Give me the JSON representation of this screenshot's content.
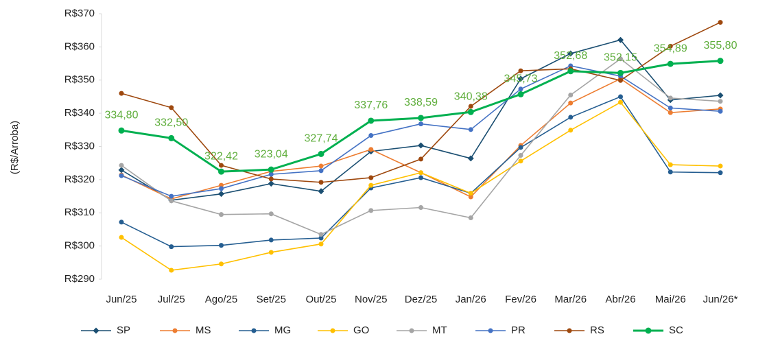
{
  "chart_data": {
    "type": "line",
    "y_label": "(R$/Arroba)",
    "categories": [
      "Jun/25",
      "Jul/25",
      "Ago/25",
      "Set/25",
      "Out/25",
      "Nov/25",
      "Dez/25",
      "Jan/26",
      "Fev/26",
      "Mar/26",
      "Abr/26",
      "Mai/26",
      "Jun/26*"
    ],
    "ylim": [
      290,
      370
    ],
    "yticks": [
      {
        "value": 290,
        "label": "R$290"
      },
      {
        "value": 300,
        "label": "R$300"
      },
      {
        "value": 310,
        "label": "R$310"
      },
      {
        "value": 320,
        "label": "R$320"
      },
      {
        "value": 330,
        "label": "R$330"
      },
      {
        "value": 340,
        "label": "R$340"
      },
      {
        "value": 350,
        "label": "R$350"
      },
      {
        "value": 360,
        "label": "R$360"
      },
      {
        "value": 370,
        "label": "R$370"
      }
    ],
    "grid": false,
    "legend": "bottom",
    "series": [
      {
        "name": "SP",
        "color": "#1b4f72",
        "marker": "diamond",
        "values": [
          322.9,
          313.8,
          315.7,
          318.8,
          316.5,
          328.5,
          330.3,
          326.4,
          350.4,
          358.0,
          362.1,
          344.0,
          345.4
        ]
      },
      {
        "name": "MS",
        "color": "#ed7d31",
        "marker": "circle",
        "values": [
          321.4,
          314.2,
          318.3,
          322.5,
          324.1,
          329.1,
          322.1,
          314.8,
          330.3,
          343.1,
          350.4,
          340.2,
          341.3
        ]
      },
      {
        "name": "MG",
        "color": "#255e91",
        "marker": "circle",
        "values": [
          307.2,
          299.8,
          300.2,
          301.8,
          302.4,
          317.5,
          320.6,
          315.9,
          329.7,
          338.8,
          345.0,
          322.3,
          322.1
        ]
      },
      {
        "name": "GO",
        "color": "#ffc000",
        "marker": "circle",
        "values": [
          302.6,
          292.7,
          294.6,
          298.1,
          300.6,
          318.3,
          322.1,
          315.9,
          325.6,
          334.9,
          343.3,
          324.5,
          324.1
        ]
      },
      {
        "name": "MT",
        "color": "#a5a5a5",
        "marker": "circle",
        "values": [
          324.3,
          313.6,
          309.5,
          309.7,
          303.5,
          310.7,
          311.6,
          308.5,
          327.3,
          345.5,
          356.4,
          344.6,
          343.6
        ]
      },
      {
        "name": "PR",
        "color": "#4472c4",
        "marker": "circle",
        "values": [
          321.2,
          315.0,
          317.3,
          321.6,
          322.7,
          333.3,
          336.8,
          335.1,
          347.3,
          354.3,
          351.2,
          341.6,
          340.6
        ]
      },
      {
        "name": "RS",
        "color": "#9e480e",
        "marker": "circle",
        "values": [
          346.0,
          341.7,
          324.3,
          320.2,
          319.2,
          320.6,
          326.2,
          342.1,
          352.8,
          353.4,
          349.9,
          360.2,
          367.4
        ]
      },
      {
        "name": "SC",
        "color": "#00b050",
        "marker": "circle",
        "values": [
          334.8,
          332.5,
          322.42,
          323.04,
          327.74,
          337.76,
          338.59,
          340.38,
          345.73,
          352.68,
          352.15,
          354.89,
          355.8
        ],
        "value_labels": [
          "334,80",
          "332,50",
          "322,42",
          "323,04",
          "327,74",
          "337,76",
          "338,59",
          "340,38",
          "345,73",
          "352,68",
          "352,15",
          "354,89",
          "355,80"
        ]
      }
    ]
  }
}
